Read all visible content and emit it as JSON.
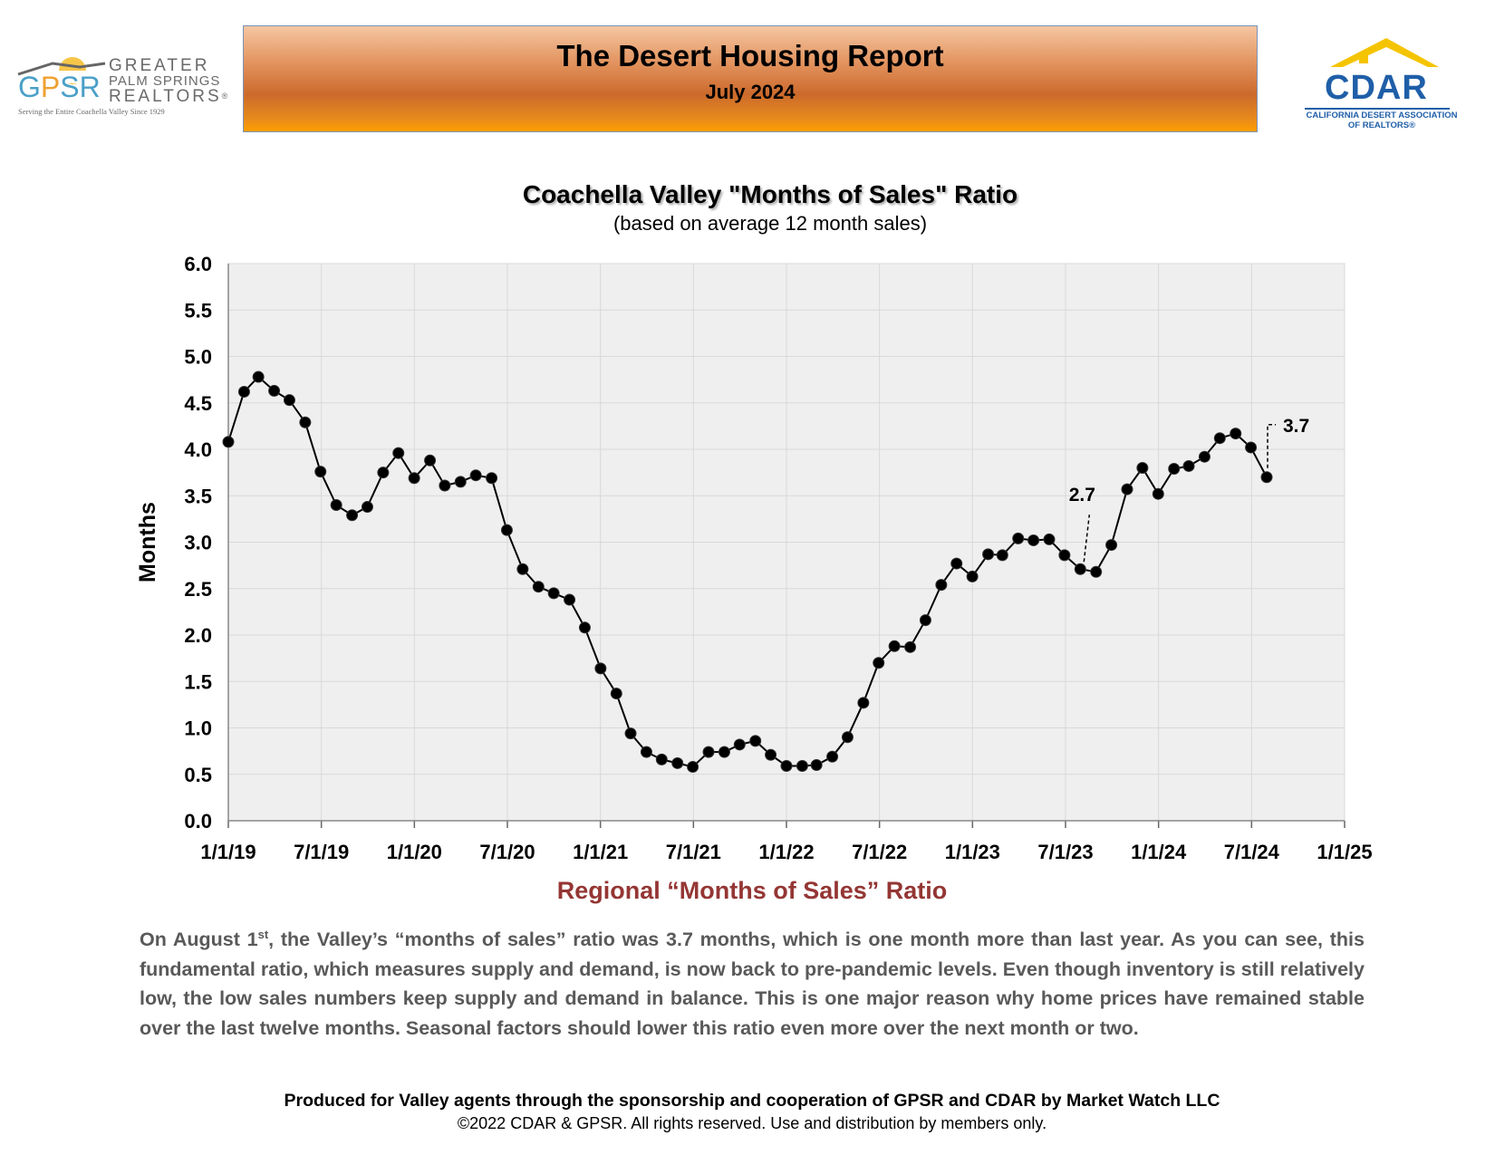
{
  "header": {
    "left_logo": {
      "letters": [
        "G",
        "P",
        "S",
        "R"
      ],
      "line1": "GREATER",
      "line2": "PALM SPRINGS",
      "line3": "REALTORS",
      "registered": "®",
      "tagline": "Serving the Entire Coachella Valley Since 1929",
      "colors": {
        "blue": "#4aa0c8",
        "orange": "#f0a030",
        "gray": "#6a6a6a"
      }
    },
    "title": "The Desert Housing Report",
    "subtitle": "July 2024",
    "right_logo": {
      "name": "CDAR",
      "line1": "CALIFORNIA DESERT ASSOCIATION",
      "line2": "OF REALTORS",
      "registered": "®",
      "colors": {
        "blue": "#1f5fa8",
        "roof": "#f5c400"
      }
    }
  },
  "chart_data": {
    "type": "line",
    "title": "Coachella Valley \"Months of Sales\" Ratio",
    "subtitle": "(based on average 12 month sales)",
    "ylabel": "Months",
    "xlabel": "",
    "ylim": [
      0,
      6
    ],
    "y_ticks": [
      "0.0",
      "0.5",
      "1.0",
      "1.5",
      "2.0",
      "2.5",
      "3.0",
      "3.5",
      "4.0",
      "4.5",
      "5.0",
      "5.5",
      "6.0"
    ],
    "x_ticks": [
      "1/1/19",
      "7/1/19",
      "1/1/20",
      "7/1/20",
      "1/1/21",
      "7/1/21",
      "1/1/22",
      "7/1/22",
      "1/1/23",
      "7/1/23",
      "1/1/24",
      "7/1/24",
      "1/1/25"
    ],
    "x_start": "2019-01-01",
    "x_end": "2025-01-01",
    "grid": true,
    "series": [
      {
        "x": [
          "2019-01-01",
          "2019-02-01",
          "2019-03-01",
          "2019-04-01",
          "2019-05-01",
          "2019-06-01",
          "2019-07-01",
          "2019-08-01",
          "2019-09-01",
          "2019-10-01",
          "2019-11-01",
          "2019-12-01",
          "2020-01-01",
          "2020-02-01",
          "2020-03-01",
          "2020-04-01",
          "2020-05-01",
          "2020-06-01",
          "2020-07-01",
          "2020-08-01",
          "2020-09-01",
          "2020-10-01",
          "2020-11-01",
          "2020-12-01",
          "2021-01-01",
          "2021-02-01",
          "2021-03-01",
          "2021-04-01",
          "2021-05-01",
          "2021-06-01",
          "2021-07-01",
          "2021-08-01",
          "2021-09-01",
          "2021-10-01",
          "2021-11-01",
          "2021-12-01",
          "2022-01-01",
          "2022-02-01",
          "2022-03-01",
          "2022-04-01",
          "2022-05-01",
          "2022-06-01",
          "2022-07-01",
          "2022-08-01",
          "2022-09-01",
          "2022-10-01",
          "2022-11-01",
          "2022-12-01",
          "2023-01-01",
          "2023-02-01",
          "2023-03-01",
          "2023-04-01",
          "2023-05-01",
          "2023-06-01",
          "2023-07-01",
          "2023-08-01",
          "2023-09-01",
          "2023-10-01",
          "2023-11-01",
          "2023-12-01",
          "2024-01-01",
          "2024-02-01",
          "2024-03-01",
          "2024-04-01",
          "2024-05-01",
          "2024-06-01",
          "2024-07-01",
          "2024-08-01"
        ],
        "y": [
          4.08,
          4.62,
          4.78,
          4.63,
          4.53,
          4.29,
          3.76,
          3.4,
          3.29,
          3.38,
          3.75,
          3.96,
          3.69,
          3.88,
          3.61,
          3.65,
          3.72,
          3.69,
          3.13,
          2.71,
          2.52,
          2.45,
          2.38,
          2.08,
          1.64,
          1.37,
          0.94,
          0.74,
          0.66,
          0.62,
          0.58,
          0.74,
          0.74,
          0.82,
          0.86,
          0.71,
          0.59,
          0.59,
          0.6,
          0.69,
          0.9,
          1.27,
          1.7,
          1.88,
          1.87,
          2.16,
          2.54,
          2.77,
          2.63,
          2.87,
          2.86,
          3.04,
          3.02,
          3.03,
          2.86,
          2.71,
          2.68,
          2.97,
          3.57,
          3.8,
          3.52,
          3.79,
          3.82,
          3.92,
          4.12,
          4.17,
          4.02,
          3.7
        ]
      }
    ],
    "annotations": [
      {
        "text": "2.7",
        "x": "2023-08-01",
        "y": 2.71
      },
      {
        "text": "3.7",
        "x": "2024-08-01",
        "y": 3.7
      }
    ],
    "colors": {
      "line": "#000000",
      "plot_bg": "#efefef",
      "grid": "#d9d9d9"
    }
  },
  "section": {
    "heading": "Regional “Months of Sales” Ratio",
    "body_pre": "On August 1",
    "body_sup": "st",
    "body_post": ", the Valley’s “months of sales” ratio was 3.7 months, which is one  month more than last year. As you can see, this fundamental ratio, which measures supply and demand, is now back to pre-pandemic levels. Even though inventory is still relatively low, the low sales numbers keep supply and demand in balance. This is one major reason why home prices have remained stable over the last twelve months. Seasonal factors should lower this ratio even more over the next month or two."
  },
  "footer": {
    "line1": "Produced for Valley agents through the sponsorship and cooperation of GPSR and CDAR by Market Watch LLC",
    "line2": "©2022 CDAR & GPSR.  All rights reserved.  Use and distribution by members only."
  }
}
